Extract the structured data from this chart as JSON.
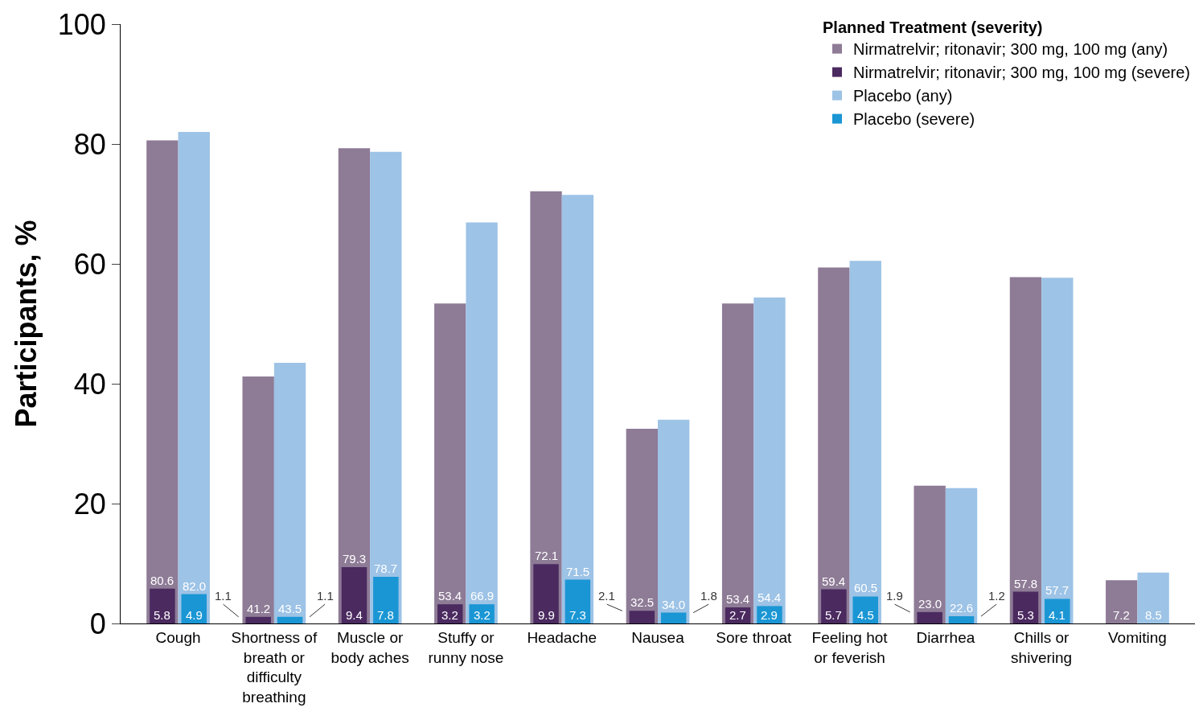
{
  "chart_data": {
    "type": "bar",
    "ylabel": "Participants, %",
    "legend_title": "Planned Treatment (severity)",
    "legend": "top right",
    "ylim": [
      0,
      100
    ],
    "yticks": [
      0,
      20,
      40,
      60,
      80,
      100
    ],
    "categories": [
      "Cough",
      "Shortness of breath or difficulty breathing",
      "Muscle or body aches",
      "Stuffy or runny nose",
      "Headache",
      "Nausea",
      "Sore throat",
      "Feeling hot or feverish",
      "Diarrhea",
      "Chills or shivering",
      "Vomiting"
    ],
    "series": [
      {
        "name": "Nirmatrelvir; ritonavir; 300 mg, 100 mg (any)",
        "color": "#8e7b96",
        "values": [
          80.6,
          41.2,
          79.3,
          53.4,
          72.1,
          32.5,
          53.4,
          59.4,
          23.0,
          57.8,
          7.2
        ],
        "value_labels": [
          "80.6",
          "41.2",
          "79.3",
          "53.4",
          "72.1",
          "32.5",
          "53.4",
          "59.4",
          "23.0",
          "57.8",
          "7.2"
        ]
      },
      {
        "name": "Nirmatrelvir; ritonavir; 300 mg, 100 mg (severe)",
        "color": "#4b2a60",
        "values": [
          5.8,
          1.1,
          9.4,
          3.2,
          9.9,
          2.1,
          2.7,
          5.7,
          1.9,
          5.3,
          null
        ],
        "value_labels": [
          "5.8",
          "1.1",
          "9.4",
          "3.2",
          "9.9",
          "2.1",
          "2.7",
          "5.7",
          "1.9",
          "5.3",
          null
        ]
      },
      {
        "name": "Placebo (any)",
        "color": "#9dc3e6",
        "values": [
          82.0,
          43.5,
          78.7,
          66.9,
          71.5,
          34.0,
          54.4,
          60.5,
          22.6,
          57.7,
          8.5
        ],
        "value_labels": [
          "82.0",
          "43.5",
          "78.7",
          "66.9",
          "71.5",
          "34.0",
          "54.4",
          "60.5",
          "22.6",
          "57.7",
          "8.5"
        ]
      },
      {
        "name": "Placebo (severe)",
        "color": "#1a96d4",
        "values": [
          4.9,
          1.1,
          7.8,
          3.2,
          7.3,
          1.8,
          2.9,
          4.5,
          1.2,
          4.1,
          null
        ],
        "value_labels": [
          "4.9",
          "1.1",
          "7.8",
          "3.2",
          "7.3",
          "1.8",
          "2.9",
          "4.5",
          "1.2",
          "4.1",
          null
        ]
      }
    ]
  }
}
